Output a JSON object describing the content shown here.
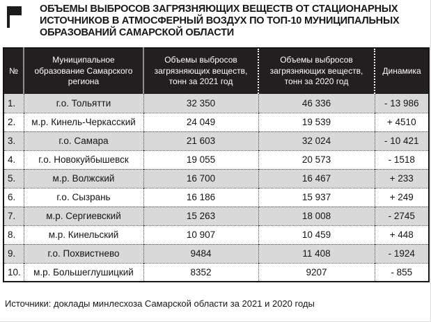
{
  "header": {
    "title_lines": [
      "ОБЪЕМЫ ВЫБРОСОВ ЗАГРЯЗНЯЮЩИХ ВЕЩЕСТВ ОТ СТАЦИОНАРНЫХ",
      "ИСТОЧНИКОВ В АТМОСФЕРНЫЙ ВОЗДУХ ПО ТОП-10 МУНИЦИПАЛЬНЫХ",
      "ОБРАЗОВАНИЙ САМАРСКОЙ ОБЛАСТИ"
    ],
    "flag_icon": "flag-icon"
  },
  "table": {
    "column_headers": [
      "№",
      "Муниципальное образование Самарского региона",
      "Объемы выбросов загрязняющих веществ, тонн за 2021 год",
      "Объемы выбросов загрязняющих веществ, тонн за 2020 год",
      "Динамика"
    ],
    "rows": [
      {
        "num": "1.",
        "name": "г.о. Тольятти",
        "y2021": "32 350",
        "y2020": "46 336",
        "dynamics": "- 13 986"
      },
      {
        "num": "2.",
        "name": "м.р. Кинель-Черкасский",
        "y2021": "24 049",
        "y2020": "19 539",
        "dynamics": "+ 4510"
      },
      {
        "num": "3.",
        "name": "г.о. Самара",
        "y2021": "21 603",
        "y2020": "32 024",
        "dynamics": "- 10 421"
      },
      {
        "num": "4.",
        "name": "г.о. Новокуйбышевск",
        "y2021": "19 055",
        "y2020": "20 573",
        "dynamics": "- 1518"
      },
      {
        "num": "5.",
        "name": "м.р. Волжский",
        "y2021": "16 700",
        "y2020": "16 467",
        "dynamics": "+ 233"
      },
      {
        "num": "6.",
        "name": "г.о. Сызрань",
        "y2021": "16 186",
        "y2020": "15 937",
        "dynamics": "+ 249"
      },
      {
        "num": "7.",
        "name": "м.р. Сергиевский",
        "y2021": "15 263",
        "y2020": "18 008",
        "dynamics": "- 2745"
      },
      {
        "num": "8.",
        "name": "м.р. Кинельский",
        "y2021": "10 907",
        "y2020": "10 459",
        "dynamics": "+ 448"
      },
      {
        "num": "9.",
        "name": "г.о. Похвистнево",
        "y2021": "9484",
        "y2020": "11 408",
        "dynamics": "- 1924"
      },
      {
        "num": "10.",
        "name": "м.р. Большеглушицкий",
        "y2021": "8352",
        "y2020": "9207",
        "dynamics": "- 855"
      }
    ]
  },
  "footer": {
    "source_note": "Источники: доклады минлесхоза Самарской области за 2021 и 2020 годы"
  },
  "colors": {
    "header_bg": "#231f20",
    "alt_row_bg": "#d9d9d9",
    "row_bg": "#ffffff",
    "text": "#1a1a1a",
    "header_text": "#ffffff"
  }
}
